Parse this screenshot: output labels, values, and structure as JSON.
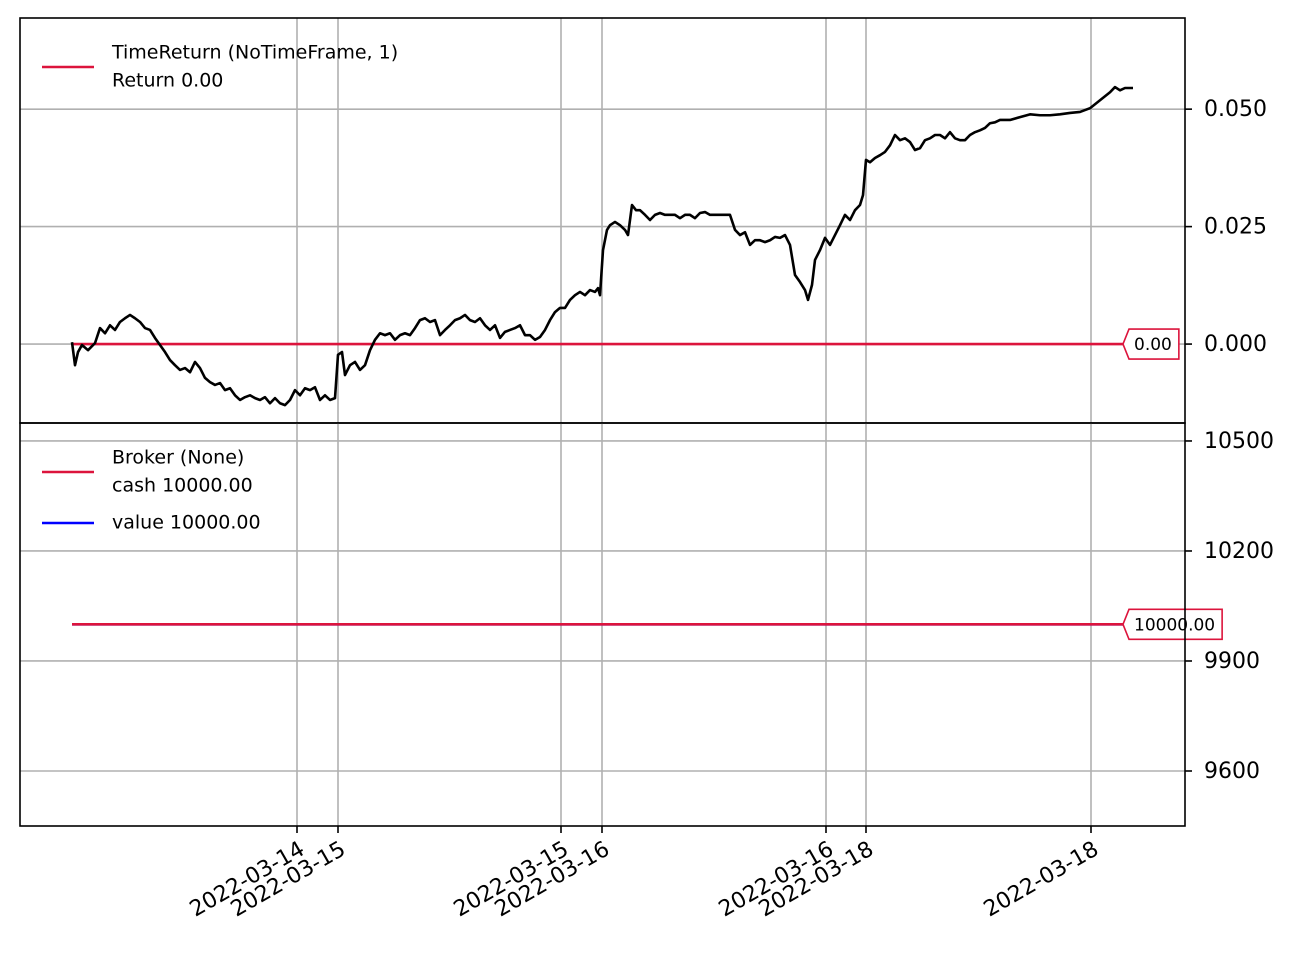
{
  "chart_data": [
    {
      "type": "line",
      "legend_title": "TimeReturn (NoTimeFrame, 1)",
      "xlim": [
        -52,
        1113
      ],
      "xticks": [
        225,
        266,
        489,
        530,
        754,
        794,
        1019
      ],
      "ylim": [
        -0.0168,
        0.0694
      ],
      "yticks": [
        {
          "value": 0,
          "label": "0.000"
        },
        {
          "value": 0.025,
          "label": "0.025"
        },
        {
          "value": 0.05,
          "label": "0.050"
        }
      ],
      "grid": true,
      "legend": "upper left",
      "series": [
        {
          "color": "#000000",
          "x": [
            0,
            3,
            6,
            10,
            16,
            23,
            28,
            33,
            38,
            43,
            48,
            53,
            58,
            63,
            68,
            73,
            78,
            83,
            88,
            93,
            98,
            103,
            108,
            113,
            118,
            123,
            128,
            133,
            138,
            143,
            148,
            153,
            158,
            163,
            168,
            173,
            178,
            183,
            188,
            193,
            198,
            203,
            208,
            213,
            218,
            223,
            228,
            233,
            238,
            243,
            248,
            253,
            258,
            263,
            266,
            270,
            273,
            278,
            283,
            288,
            293,
            298,
            303,
            308,
            313,
            318,
            323,
            328,
            333,
            338,
            343,
            348,
            353,
            358,
            363,
            368,
            373,
            378,
            383,
            388,
            393,
            398,
            403,
            408,
            413,
            418,
            423,
            428,
            433,
            438,
            443,
            448,
            453,
            458,
            463,
            468,
            473,
            478,
            483,
            488,
            493,
            498,
            503,
            508,
            513,
            518,
            523,
            526,
            528,
            531,
            535,
            538,
            543,
            548,
            553,
            556,
            560,
            564,
            568,
            573,
            578,
            583,
            588,
            593,
            598,
            603,
            608,
            613,
            618,
            623,
            628,
            633,
            638,
            643,
            648,
            653,
            658,
            663,
            668,
            673,
            678,
            683,
            688,
            693,
            698,
            703,
            708,
            713,
            718,
            723,
            728,
            733,
            736,
            740,
            743,
            748,
            753,
            758,
            763,
            768,
            773,
            778,
            783,
            788,
            791,
            794,
            798,
            803,
            808,
            813,
            818,
            823,
            828,
            833,
            838,
            843,
            848,
            853,
            858,
            863,
            868,
            873,
            878,
            883,
            888,
            893,
            898,
            903,
            908,
            913,
            918,
            923,
            928,
            938,
            948,
            958,
            968,
            978,
            988,
            998,
            1008,
            1018,
            1028,
            1038,
            1043,
            1048,
            1053,
            1061
          ],
          "values": [
            0.0004,
            -0.0045,
            -0.0017,
            -0.0002,
            -0.0013,
            0.0002,
            0.0034,
            0.0023,
            0.004,
            0.003,
            0.0047,
            0.0055,
            0.0062,
            0.0055,
            0.0047,
            0.0034,
            0.003,
            0.0013,
            -0.0002,
            -0.0017,
            -0.0034,
            -0.0045,
            -0.0055,
            -0.0051,
            -0.006,
            -0.0038,
            -0.0051,
            -0.0072,
            -0.0081,
            -0.0087,
            -0.0083,
            -0.0098,
            -0.0094,
            -0.0109,
            -0.0119,
            -0.0113,
            -0.0109,
            -0.0115,
            -0.0119,
            -0.0113,
            -0.0126,
            -0.0115,
            -0.0126,
            -0.013,
            -0.0119,
            -0.0098,
            -0.0109,
            -0.0094,
            -0.0098,
            -0.0092,
            -0.0119,
            -0.0109,
            -0.0119,
            -0.0115,
            -0.0023,
            -0.0017,
            -0.0066,
            -0.0045,
            -0.0038,
            -0.0055,
            -0.0045,
            -0.0013,
            0.0009,
            0.0023,
            0.0019,
            0.0023,
            0.0009,
            0.0019,
            0.0023,
            0.0019,
            0.0034,
            0.0051,
            0.0055,
            0.0047,
            0.0051,
            0.0019,
            0.003,
            0.004,
            0.0051,
            0.0055,
            0.0062,
            0.0051,
            0.0047,
            0.0055,
            0.004,
            0.003,
            0.004,
            0.0013,
            0.0026,
            0.003,
            0.0034,
            0.004,
            0.0019,
            0.0019,
            0.0009,
            0.0015,
            0.003,
            0.0051,
            0.0068,
            0.0077,
            0.0077,
            0.0094,
            0.0104,
            0.0111,
            0.0104,
            0.0115,
            0.0111,
            0.0119,
            0.0104,
            0.02,
            0.0243,
            0.0253,
            0.026,
            0.0253,
            0.0243,
            0.0232,
            0.0296,
            0.0285,
            0.0285,
            0.0275,
            0.0264,
            0.0275,
            0.0279,
            0.0275,
            0.0275,
            0.0275,
            0.0268,
            0.0275,
            0.0275,
            0.0268,
            0.0279,
            0.0281,
            0.0275,
            0.0275,
            0.0275,
            0.0275,
            0.0275,
            0.0243,
            0.0232,
            0.0238,
            0.0211,
            0.0221,
            0.0221,
            0.0217,
            0.0221,
            0.0228,
            0.0226,
            0.0232,
            0.0211,
            0.0147,
            0.0132,
            0.0115,
            0.0094,
            0.0126,
            0.0179,
            0.02,
            0.0226,
            0.0211,
            0.0232,
            0.0253,
            0.0275,
            0.0264,
            0.0285,
            0.0296,
            0.0317,
            0.0392,
            0.0387,
            0.0396,
            0.0402,
            0.0409,
            0.0423,
            0.0445,
            0.0434,
            0.0438,
            0.043,
            0.0413,
            0.0417,
            0.0434,
            0.0438,
            0.0445,
            0.0445,
            0.0438,
            0.0451,
            0.0438,
            0.0434,
            0.0434,
            0.0445,
            0.0451,
            0.0455,
            0.046,
            0.047,
            0.0472,
            0.0477,
            0.0477,
            0.0483,
            0.0489,
            0.0487,
            0.0487,
            0.0489,
            0.0492,
            0.0494,
            0.0502,
            0.0519,
            0.0536,
            0.0547,
            0.054,
            0.0545,
            0.0545
          ]
        },
        {
          "name": "Return 0.00",
          "color": "#dc143c",
          "x": [
            0,
            1061
          ],
          "values": [
            0,
            0
          ],
          "end_label": "0.00"
        }
      ]
    },
    {
      "type": "line",
      "legend_title": "Broker (None)",
      "xlim": [
        -52,
        1113
      ],
      "xticks": [
        {
          "value": 225,
          "label": "2022-03-14"
        },
        {
          "value": 266,
          "label": "2022-03-15"
        },
        {
          "value": 489,
          "label": "2022-03-15"
        },
        {
          "value": 530,
          "label": "2022-03-16"
        },
        {
          "value": 754,
          "label": "2022-03-16"
        },
        {
          "value": 794,
          "label": "2022-03-18"
        },
        {
          "value": 1019,
          "label": "2022-03-18"
        }
      ],
      "ylim": [
        9450,
        10549
      ],
      "yticks": [
        9600,
        9900,
        10200,
        10500
      ],
      "grid": true,
      "legend": "upper left",
      "series": [
        {
          "name": "cash 10000.00",
          "color": "#dc143c",
          "x": [
            0,
            1061
          ],
          "values": [
            10000,
            10000
          ],
          "end_label": "10000.00"
        },
        {
          "name": "value 10000.00",
          "color": "#0000ff",
          "x": [
            0,
            1061
          ],
          "values": [
            10000,
            10000
          ]
        }
      ]
    }
  ]
}
